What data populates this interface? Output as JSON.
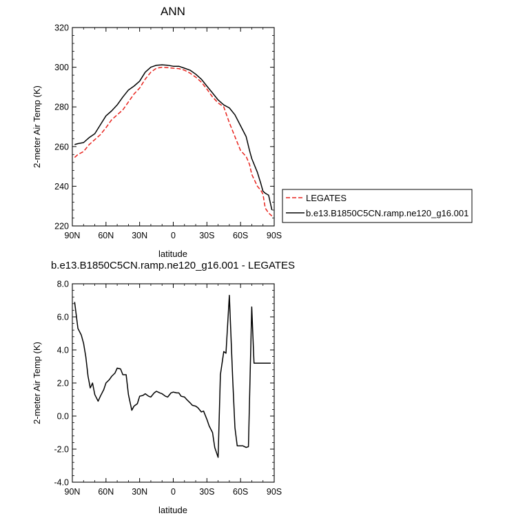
{
  "chart_data": [
    {
      "type": "line",
      "title": "ANN",
      "xlabel": "latitude",
      "ylabel": "2-meter Air Temp (K)",
      "xlim": [
        90,
        -90
      ],
      "ylim": [
        220,
        320
      ],
      "xticks": [
        90,
        60,
        30,
        0,
        -30,
        -60,
        -90
      ],
      "xtick_labels": [
        "90N",
        "60N",
        "30N",
        "0",
        "30S",
        "60S",
        "90S"
      ],
      "yticks": [
        220,
        240,
        260,
        280,
        300,
        320
      ],
      "ytick_labels": [
        "220",
        "240",
        "260",
        "280",
        "300",
        "320"
      ],
      "legend_position": "right, outside plot",
      "series": [
        {
          "name": "LEGATES",
          "color": "#e8211b",
          "dash": "dashed",
          "x": [
            88,
            85,
            80,
            75,
            70,
            65,
            60,
            55,
            50,
            45,
            40,
            35,
            30,
            25,
            20,
            15,
            10,
            5,
            0,
            -5,
            -10,
            -15,
            -20,
            -25,
            -30,
            -35,
            -40,
            -45,
            -50,
            -55,
            -60,
            -65,
            -68,
            -70,
            -75,
            -78,
            -80,
            -82,
            -85,
            -88
          ],
          "y": [
            254.5,
            256,
            257.5,
            261,
            263.5,
            266,
            269.5,
            273.5,
            276,
            278.5,
            282.5,
            286.5,
            289.5,
            294,
            297.5,
            299.5,
            300,
            299.8,
            299.5,
            299.3,
            298.5,
            297,
            295,
            292.5,
            289,
            285,
            282,
            280,
            272,
            265,
            258,
            255,
            251,
            246,
            240,
            238,
            236,
            229,
            226.5,
            225
          ]
        },
        {
          "name": "b.e13.B1850C5CN.ramp.ne120_g16.001",
          "color": "#000000",
          "dash": "solid",
          "x": [
            88,
            85,
            80,
            75,
            70,
            65,
            60,
            55,
            50,
            45,
            40,
            35,
            30,
            25,
            20,
            15,
            10,
            5,
            0,
            -5,
            -10,
            -15,
            -20,
            -25,
            -30,
            -35,
            -40,
            -45,
            -50,
            -55,
            -60,
            -65,
            -68,
            -70,
            -75,
            -78,
            -80,
            -82,
            -85,
            -88
          ],
          "y": [
            261,
            261.5,
            262,
            264.5,
            266.5,
            271,
            275.5,
            278,
            281,
            285,
            288.5,
            290.5,
            293,
            297.5,
            300,
            301,
            301.2,
            301,
            300.5,
            300.5,
            299.5,
            298.5,
            296.5,
            294,
            290.5,
            287,
            283.5,
            281,
            279.5,
            276,
            270.5,
            265,
            258,
            254,
            247,
            241.5,
            237.5,
            236.5,
            235.5,
            228
          ]
        }
      ]
    },
    {
      "type": "line",
      "title": "b.e13.B1850C5CN.ramp.ne120_g16.001 - LEGATES",
      "xlabel": "latitude",
      "ylabel": "2-meter Air Temp (K)",
      "xlim": [
        90,
        -90
      ],
      "ylim": [
        -4.0,
        8.0
      ],
      "xticks": [
        90,
        60,
        30,
        0,
        -30,
        -60,
        -90
      ],
      "xtick_labels": [
        "90N",
        "60N",
        "30N",
        "0",
        "30S",
        "60S",
        "90S"
      ],
      "yticks": [
        -4,
        -2,
        0,
        2,
        4,
        6,
        8
      ],
      "ytick_labels": [
        "-4.0",
        "-2.0",
        "0.0",
        "2.0",
        "4.0",
        "6.0",
        "8.0"
      ],
      "series": [
        {
          "color": "#000000",
          "dash": "solid",
          "x": [
            88,
            85,
            82,
            80,
            78,
            76,
            74,
            72,
            70,
            67,
            65,
            62,
            60,
            57,
            55,
            52,
            50,
            47,
            45,
            42,
            40,
            37,
            35,
            32,
            30,
            27,
            25,
            22,
            20,
            17,
            15,
            12,
            10,
            7,
            5,
            2,
            0,
            -3,
            -5,
            -7,
            -10,
            -12,
            -15,
            -17,
            -20,
            -22,
            -25,
            -27,
            -30,
            -32,
            -35,
            -37,
            -40,
            -42,
            -45,
            -47,
            -50,
            -53,
            -55,
            -57,
            -60,
            -62,
            -65,
            -67,
            -70,
            -72,
            -75,
            -78,
            -80,
            -82,
            -85,
            -87
          ],
          "y": [
            6.9,
            5.3,
            4.9,
            4.4,
            3.6,
            2.4,
            1.7,
            2.0,
            1.3,
            0.9,
            1.2,
            1.6,
            2.0,
            2.2,
            2.4,
            2.6,
            2.9,
            2.85,
            2.5,
            2.5,
            1.3,
            0.35,
            0.6,
            0.75,
            1.2,
            1.25,
            1.35,
            1.2,
            1.15,
            1.4,
            1.5,
            1.4,
            1.35,
            1.2,
            1.15,
            1.4,
            1.45,
            1.4,
            1.4,
            1.2,
            1.15,
            1.0,
            0.8,
            0.65,
            0.6,
            0.5,
            0.25,
            0.3,
            -0.2,
            -0.6,
            -1.0,
            -1.9,
            -2.5,
            2.5,
            3.9,
            3.8,
            7.3,
            2.2,
            -0.7,
            -1.8,
            -1.8,
            -1.8,
            -1.9,
            -1.85,
            6.6,
            3.2,
            3.2,
            3.2,
            3.2,
            3.2,
            3.2,
            3.2
          ]
        }
      ]
    }
  ]
}
